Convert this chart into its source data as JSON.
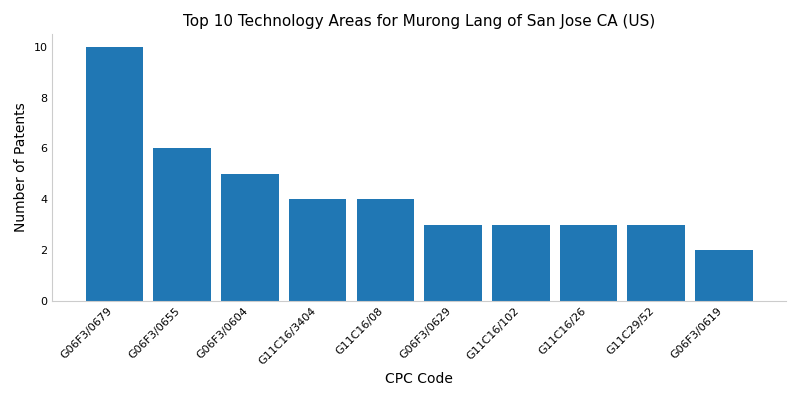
{
  "title": "Top 10 Technology Areas for Murong Lang of San Jose CA (US)",
  "categories": [
    "G06F3/0679",
    "G06F3/0655",
    "G06F3/0604",
    "G11C16/3404",
    "G11C16/08",
    "G06F3/0629",
    "G11C16/102",
    "G11C16/26",
    "G11C29/52",
    "G06F3/0619"
  ],
  "values": [
    10,
    6,
    5,
    4,
    4,
    3,
    3,
    3,
    3,
    2
  ],
  "bar_color": "#2077b4",
  "xlabel": "CPC Code",
  "ylabel": "Number of Patents",
  "ylim": [
    0,
    10.5
  ],
  "yticks": [
    0,
    2,
    4,
    6,
    8,
    10
  ],
  "title_fontsize": 11,
  "label_fontsize": 10,
  "tick_fontsize": 8,
  "bar_width": 0.85,
  "figsize": [
    8.0,
    4.0
  ],
  "dpi": 100
}
